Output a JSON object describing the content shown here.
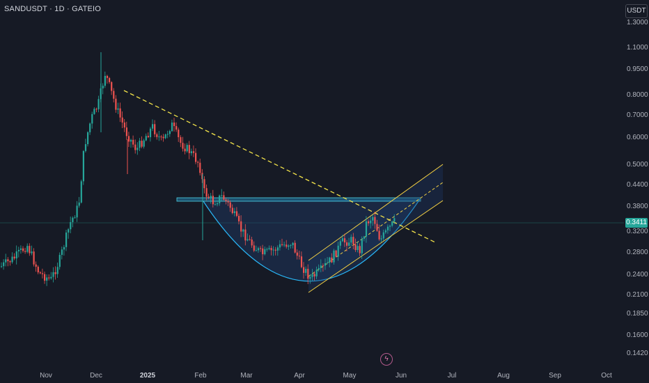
{
  "header": {
    "symbol": "SANDUSDT · 1D · GATEIO",
    "currency_button": "USDT"
  },
  "price_axis": {
    "labels": [
      "1.3000",
      "1.1000",
      "0.9500",
      "0.8000",
      "0.7000",
      "0.6000",
      "0.5000",
      "0.4400",
      "0.3800",
      "0.3200",
      "0.2800",
      "0.2400",
      "0.2100",
      "0.1850",
      "0.1600",
      "0.1420"
    ],
    "current_price": "0.3411",
    "current_price_color": "#26a69a"
  },
  "time_axis": {
    "labels": [
      {
        "text": "Nov",
        "bold": false
      },
      {
        "text": "Dec",
        "bold": false
      },
      {
        "text": "2025",
        "bold": true
      },
      {
        "text": "Feb",
        "bold": false
      },
      {
        "text": "Mar",
        "bold": false
      },
      {
        "text": "Apr",
        "bold": false
      },
      {
        "text": "May",
        "bold": false
      },
      {
        "text": "Jun",
        "bold": false
      },
      {
        "text": "Jul",
        "bold": false
      },
      {
        "text": "Aug",
        "bold": false
      },
      {
        "text": "Sep",
        "bold": false
      },
      {
        "text": "Oct",
        "bold": false
      }
    ]
  },
  "colors": {
    "background": "#161a25",
    "up": "#26a69a",
    "down": "#ef5350",
    "trendline": "#f5e54a",
    "channel": "#f5d142",
    "cup": "#29b6f6"
  },
  "icons": {
    "event_marker": "lightning-icon"
  }
}
